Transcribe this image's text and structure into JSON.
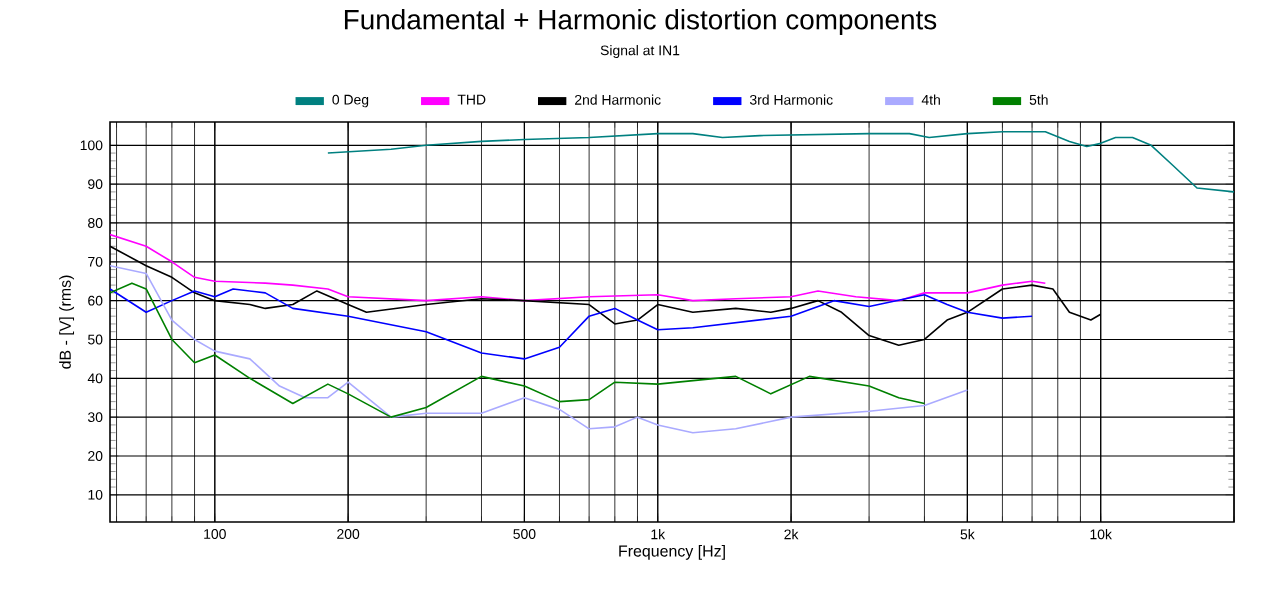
{
  "chart_data": {
    "type": "line",
    "title": "Fundamental + Harmonic distortion components",
    "subtitle": "Signal at IN1",
    "xlabel": "Frequency [Hz]",
    "ylabel": "dB - [V]  (rms)",
    "log": "x",
    "grid": true,
    "legend": "top",
    "line_style": "solid",
    "marker": "none",
    "xlim": [
      58,
      20000
    ],
    "ylim": [
      3,
      106
    ],
    "xticks": [
      100,
      200,
      500,
      {
        "value": 1000,
        "label": "1k"
      },
      {
        "value": 2000,
        "label": "2k"
      },
      {
        "value": 5000,
        "label": "5k"
      },
      {
        "value": 10000,
        "label": "10k"
      }
    ],
    "yticks": [
      10,
      20,
      30,
      40,
      50,
      60,
      70,
      80,
      90,
      100
    ],
    "series": [
      {
        "name": "0 Deg",
        "color": "#008080",
        "x": [
          180,
          250,
          300,
          400,
          500,
          700,
          1000,
          1200,
          1400,
          1700,
          3000,
          3700,
          4100,
          5000,
          6000,
          7500,
          8500,
          9300,
          10000,
          10800,
          11800,
          13000,
          14500,
          16500,
          20000
        ],
        "values": [
          98,
          99,
          100,
          101,
          101.5,
          102,
          103,
          103,
          102,
          102.5,
          103,
          103,
          102,
          103,
          103.5,
          103.5,
          101,
          99.7,
          100.5,
          102,
          102,
          100,
          95,
          89,
          88
        ]
      },
      {
        "name": "THD",
        "color": "#ff00ff",
        "x": [
          58,
          70,
          80,
          90,
          100,
          130,
          150,
          180,
          200,
          300,
          400,
          500,
          700,
          1000,
          1200,
          1500,
          2000,
          2300,
          2800,
          3500,
          4000,
          5000,
          6000,
          7000,
          7500
        ],
        "values": [
          77,
          74,
          70,
          66,
          65,
          64.5,
          64,
          63,
          61,
          60,
          61,
          60,
          61,
          61.5,
          60,
          60.5,
          61,
          62.5,
          61,
          60,
          62,
          62,
          64,
          65,
          64.5
        ]
      },
      {
        "name": "2nd Harmonic",
        "color": "#000000",
        "x": [
          58,
          70,
          80,
          90,
          100,
          120,
          130,
          150,
          170,
          200,
          220,
          300,
          400,
          500,
          700,
          800,
          900,
          1000,
          1200,
          1500,
          1800,
          2000,
          2300,
          2600,
          3000,
          3500,
          4000,
          4500,
          5000,
          6000,
          7000,
          7800,
          8500,
          9500,
          10000
        ],
        "values": [
          74,
          69,
          66,
          62,
          60,
          59,
          58,
          59,
          62.5,
          59,
          57,
          59,
          60.5,
          60,
          59,
          54,
          55,
          59,
          57,
          58,
          57,
          58,
          60,
          57,
          51,
          48.5,
          50,
          55,
          57,
          63,
          64,
          63,
          57,
          55,
          56.5
        ]
      },
      {
        "name": "3rd Harmonic",
        "color": "#0000ff",
        "x": [
          58,
          70,
          80,
          90,
          100,
          110,
          130,
          150,
          200,
          300,
          400,
          500,
          600,
          700,
          800,
          900,
          1000,
          1200,
          2000,
          2500,
          3000,
          4000,
          4500,
          5000,
          6000,
          7000
        ],
        "values": [
          63,
          57,
          60,
          62.5,
          61,
          63,
          62,
          58,
          56,
          52,
          46.5,
          45,
          48,
          56,
          58,
          55,
          52.5,
          53,
          56,
          60,
          58.5,
          61.5,
          59,
          57,
          55.5,
          56
        ]
      },
      {
        "name": "4th",
        "color": "#aaaaff",
        "x": [
          58,
          70,
          80,
          90,
          100,
          120,
          140,
          160,
          180,
          200,
          250,
          300,
          400,
          500,
          600,
          700,
          800,
          900,
          1000,
          1200,
          1500,
          2000,
          3000,
          4000,
          5000
        ],
        "values": [
          69,
          67,
          55,
          50,
          47,
          45,
          38,
          35,
          35,
          39,
          30,
          31,
          31,
          35,
          32,
          27,
          27.5,
          30,
          28,
          26,
          27,
          30,
          31.5,
          33,
          37
        ]
      },
      {
        "name": "5th",
        "color": "#008000",
        "x": [
          58,
          65,
          70,
          80,
          90,
          100,
          120,
          150,
          180,
          200,
          250,
          300,
          400,
          500,
          600,
          700,
          800,
          1000,
          1500,
          1800,
          2200,
          3000,
          3500,
          4000
        ],
        "values": [
          62,
          64.5,
          63,
          50,
          44,
          46,
          40,
          33.5,
          38.5,
          36,
          30,
          32.5,
          40.5,
          38,
          34,
          34.5,
          39,
          38.5,
          40.5,
          36,
          40.5,
          38,
          35,
          33.5
        ]
      }
    ]
  }
}
